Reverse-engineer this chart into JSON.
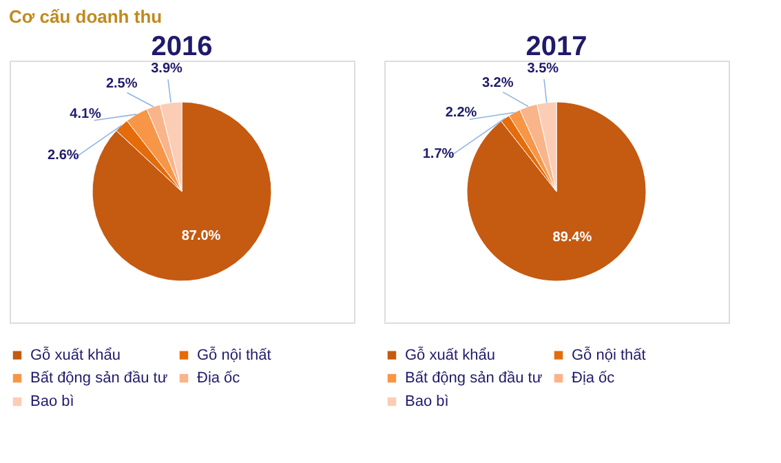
{
  "chart_data": [
    {
      "type": "pie",
      "title": "2016",
      "annotations": [
        "Cơ cấu doanh thu"
      ],
      "categories": [
        "Gỗ xuất khẩu",
        "Gỗ nội thất",
        "Bất động sản đầu tư",
        "Địa ốc",
        "Bao bì"
      ],
      "values": [
        87.0,
        2.6,
        4.1,
        2.5,
        3.9
      ],
      "value_labels": [
        "87.0%",
        "2.6%",
        "4.1%",
        "2.5%",
        "3.9%"
      ],
      "colors": [
        "#c55a11",
        "#e46c0a",
        "#f79646",
        "#fab48a",
        "#fbcdb4"
      ],
      "legend": "bottom"
    },
    {
      "type": "pie",
      "title": "2017",
      "categories": [
        "Gỗ xuất khẩu",
        "Gỗ nội thất",
        "Bất động sản đầu tư",
        "Địa ốc",
        "Bao bì"
      ],
      "values": [
        89.4,
        1.7,
        2.2,
        3.2,
        3.5
      ],
      "value_labels": [
        "89.4%",
        "1.7%",
        "2.2%",
        "3.2%",
        "3.5%"
      ],
      "colors": [
        "#c55a11",
        "#e46c0a",
        "#f79646",
        "#fab48a",
        "#fbcdb4"
      ],
      "legend": "bottom"
    }
  ]
}
